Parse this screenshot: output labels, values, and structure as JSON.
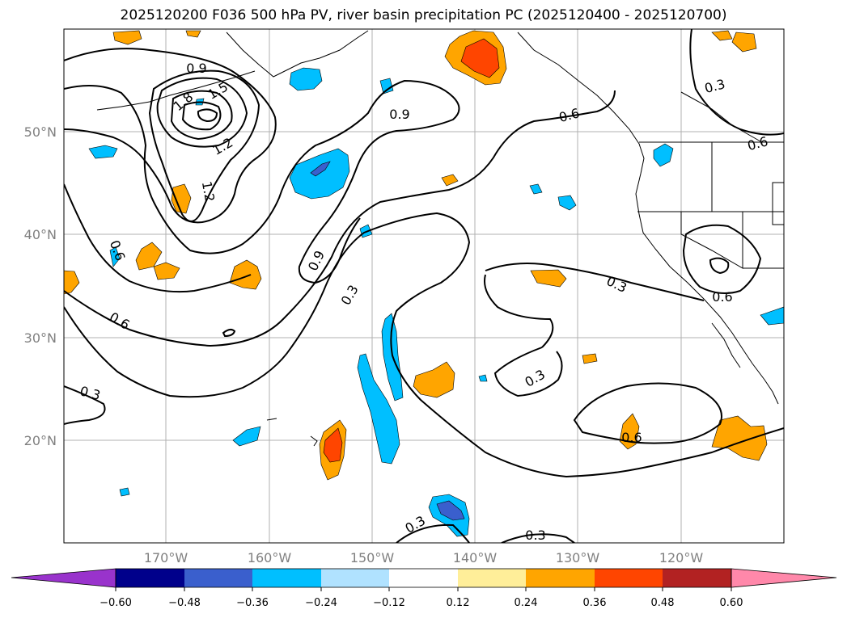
{
  "title": "2025120200 F036 500 hPa PV, river basin precipitation PC (2025120400 - 2025120700)",
  "map": {
    "lat_labels": [
      "50°N",
      "40°N",
      "30°N",
      "20°N"
    ],
    "lon_labels": [
      "170°W",
      "160°W",
      "150°W",
      "140°W",
      "130°W",
      "120°W"
    ],
    "contour_labels": [
      "0.9",
      "1.5",
      "1.8",
      "1.2",
      "1.2",
      "0.9",
      "0.6",
      "0.6",
      "0.6",
      "0.3",
      "0.9",
      "0.3",
      "0.3",
      "0.6",
      "0.3",
      "0.6",
      "0.3",
      "0.6",
      "0.3",
      "0.3"
    ],
    "colors": {
      "contour": "#000000",
      "grid": "#b0b0b0",
      "coast": "#000000"
    }
  },
  "colorbar": {
    "ticks": [
      "−0.60",
      "−0.48",
      "−0.36",
      "−0.24",
      "−0.12",
      "0.12",
      "0.24",
      "0.36",
      "0.48",
      "0.60"
    ],
    "colors": [
      "#9933cc",
      "#00008b",
      "#3a5fcd",
      "#00bfff",
      "#b0e2ff",
      "#ffffff",
      "#ffee99",
      "#ffa500",
      "#ff4500",
      "#b22222",
      "#ff88aa"
    ]
  }
}
